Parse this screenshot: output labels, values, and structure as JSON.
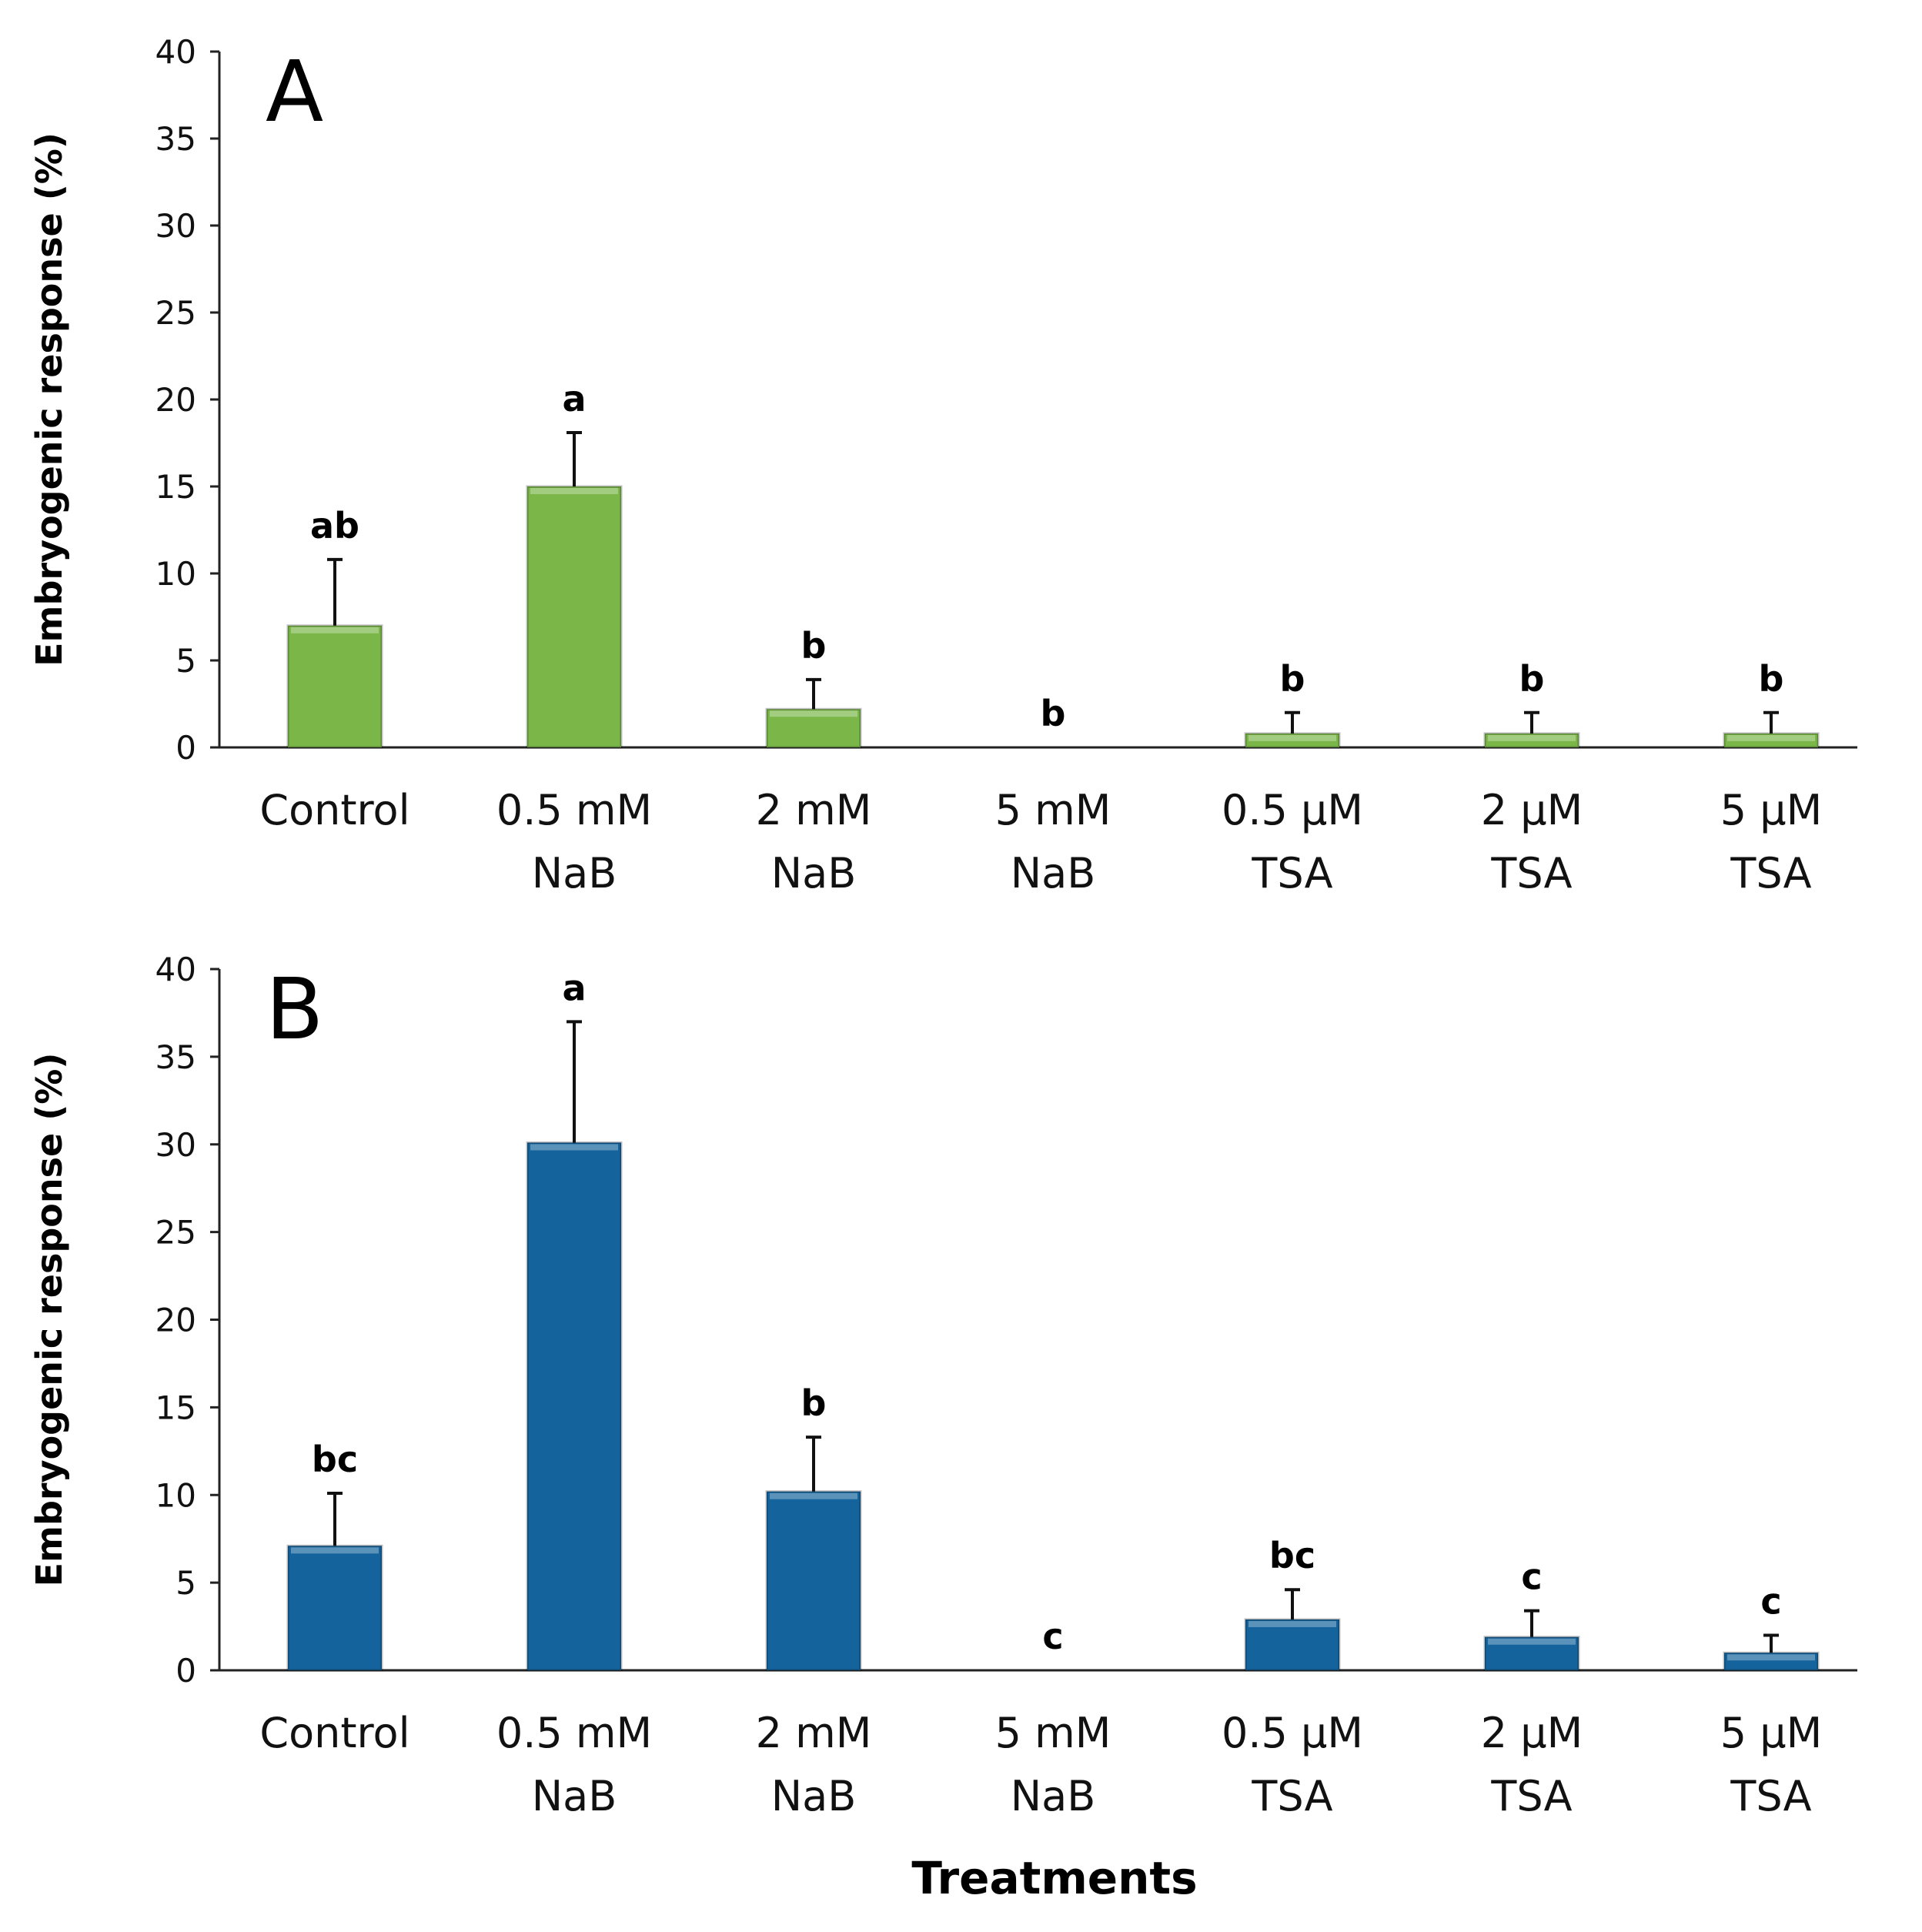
{
  "chart_data": [
    {
      "type": "bar",
      "panel": "A",
      "categories": [
        [
          "Control",
          ""
        ],
        [
          "0.5 mM",
          "NaB"
        ],
        [
          "2 mM",
          "NaB"
        ],
        [
          "5 mM",
          "NaB"
        ],
        [
          "0.5 µM",
          "TSA"
        ],
        [
          "2 µM",
          "TSA"
        ],
        [
          "5 µM",
          "TSA"
        ]
      ],
      "values": [
        7.0,
        15.0,
        2.2,
        0,
        0.8,
        0.8,
        0.8
      ],
      "errors": [
        3.8,
        3.1,
        1.7,
        0,
        1.2,
        1.2,
        1.2
      ],
      "letters": [
        "ab",
        "a",
        "b",
        "b",
        "b",
        "b",
        "b"
      ],
      "ylabel": "Embryogenic response (%)",
      "ylim": [
        0,
        40
      ],
      "yticks": [
        0,
        5,
        10,
        15,
        20,
        25,
        30,
        35,
        40
      ],
      "color": "#7ab648"
    },
    {
      "type": "bar",
      "panel": "B",
      "categories": [
        [
          "Control",
          ""
        ],
        [
          "0.5 mM",
          "NaB"
        ],
        [
          "2 mM",
          "NaB"
        ],
        [
          "5 mM",
          "NaB"
        ],
        [
          "0.5 µM",
          "TSA"
        ],
        [
          "2 µM",
          "TSA"
        ],
        [
          "5 µM",
          "TSA"
        ]
      ],
      "values": [
        7.1,
        30.1,
        10.2,
        0,
        2.9,
        1.9,
        1.0
      ],
      "errors": [
        3.0,
        6.9,
        3.1,
        0,
        1.7,
        1.5,
        1.0
      ],
      "letters": [
        "bc",
        "a",
        "b",
        "c",
        "bc",
        "c",
        "c"
      ],
      "ylabel": "Embryogenic response (%)",
      "ylim": [
        0,
        40
      ],
      "yticks": [
        0,
        5,
        10,
        15,
        20,
        25,
        30,
        35,
        40
      ],
      "color": "#14639c"
    }
  ],
  "xlabel": "Treatments"
}
